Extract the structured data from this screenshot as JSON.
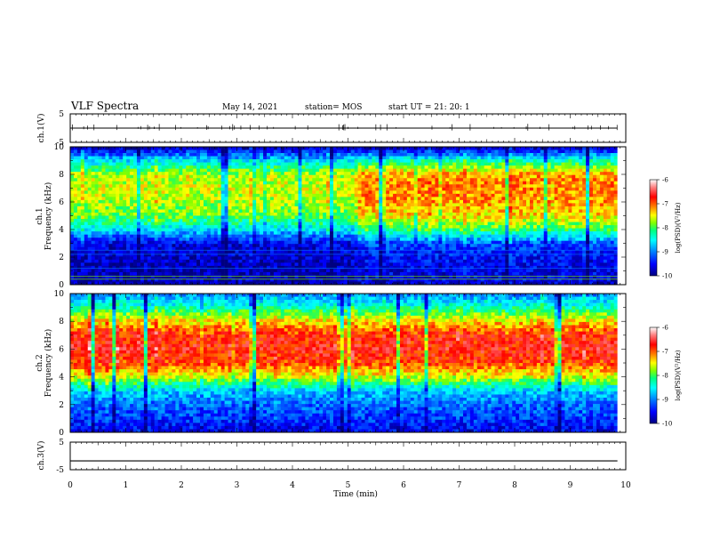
{
  "header": {
    "title": "VLF Spectra",
    "date": "May 14, 2021",
    "station": "station= MOS",
    "start": "start  UT =   21: 20: 1"
  },
  "colors": {
    "scale": [
      "#00007f",
      "#0000ff",
      "#0080ff",
      "#00ffff",
      "#00ff80",
      "#80ff00",
      "#ffff00",
      "#ff8000",
      "#ff0000",
      "#ffffff"
    ]
  },
  "chart_data": [
    {
      "type": "line",
      "panel": "ch1-voltage",
      "ylabel": "ch.1(V)",
      "ylim": [
        -5,
        5
      ],
      "yticks": [
        "5",
        "-5"
      ],
      "x": [
        0,
        10
      ],
      "y": [
        0,
        0
      ]
    },
    {
      "type": "heatmap",
      "panel": "ch1-spectrogram",
      "ylabel": "ch.1\nFrequency (kHz)",
      "ylim": [
        0,
        10
      ],
      "yticks": [
        "0",
        "2",
        "4",
        "6",
        "8",
        "10"
      ],
      "xlim": [
        0,
        10
      ],
      "zlabel": "log(PSD)(V²/Hz)",
      "zlim": [
        -10,
        -6
      ],
      "zticks": [
        "-6",
        "-7",
        "-8",
        "-9",
        "-10"
      ],
      "profile": {
        "freq_khz": [
          0,
          1,
          2,
          3,
          4,
          5,
          6,
          7,
          8,
          9,
          10
        ],
        "mean_log_psd_0_to_5min": [
          -9.8,
          -9.8,
          -9.7,
          -9.6,
          -8.6,
          -7.9,
          -7.7,
          -7.6,
          -7.7,
          -8.6,
          -9.8
        ],
        "mean_log_psd_5_to_10min": [
          -9.7,
          -9.6,
          -9.5,
          -9.2,
          -8.0,
          -7.4,
          -7.2,
          -7.1,
          -7.2,
          -8.3,
          -9.8
        ]
      }
    },
    {
      "type": "heatmap",
      "panel": "ch2-spectrogram",
      "ylabel": "ch.2\nFrequency (kHz)",
      "ylim": [
        0,
        10
      ],
      "yticks": [
        "0",
        "2",
        "4",
        "6",
        "8",
        "10"
      ],
      "xlim": [
        0,
        10
      ],
      "zlabel": "log(PSD)(V²/Hz)",
      "zlim": [
        -10,
        -6
      ],
      "zticks": [
        "-6",
        "-7",
        "-8",
        "-9",
        "-10"
      ],
      "profile": {
        "freq_khz": [
          0,
          1,
          2,
          3,
          4,
          5,
          6,
          7,
          8,
          9,
          10
        ],
        "mean_log_psd": [
          -9.6,
          -9.3,
          -9.1,
          -8.7,
          -7.6,
          -6.9,
          -6.7,
          -6.8,
          -7.4,
          -8.3,
          -9.0
        ]
      }
    },
    {
      "type": "line",
      "panel": "ch3-voltage",
      "ylabel": "ch.3(V)",
      "ylim": [
        -5,
        5
      ],
      "yticks": [
        "5",
        "-5"
      ],
      "x": [
        0,
        10
      ],
      "y": [
        -1.8,
        -1.8
      ]
    }
  ],
  "xaxis": {
    "label": "Time  (min)",
    "ticks": [
      "0",
      "1",
      "2",
      "3",
      "4",
      "5",
      "6",
      "7",
      "8",
      "9",
      "10"
    ],
    "data_end_min": 9.85
  }
}
